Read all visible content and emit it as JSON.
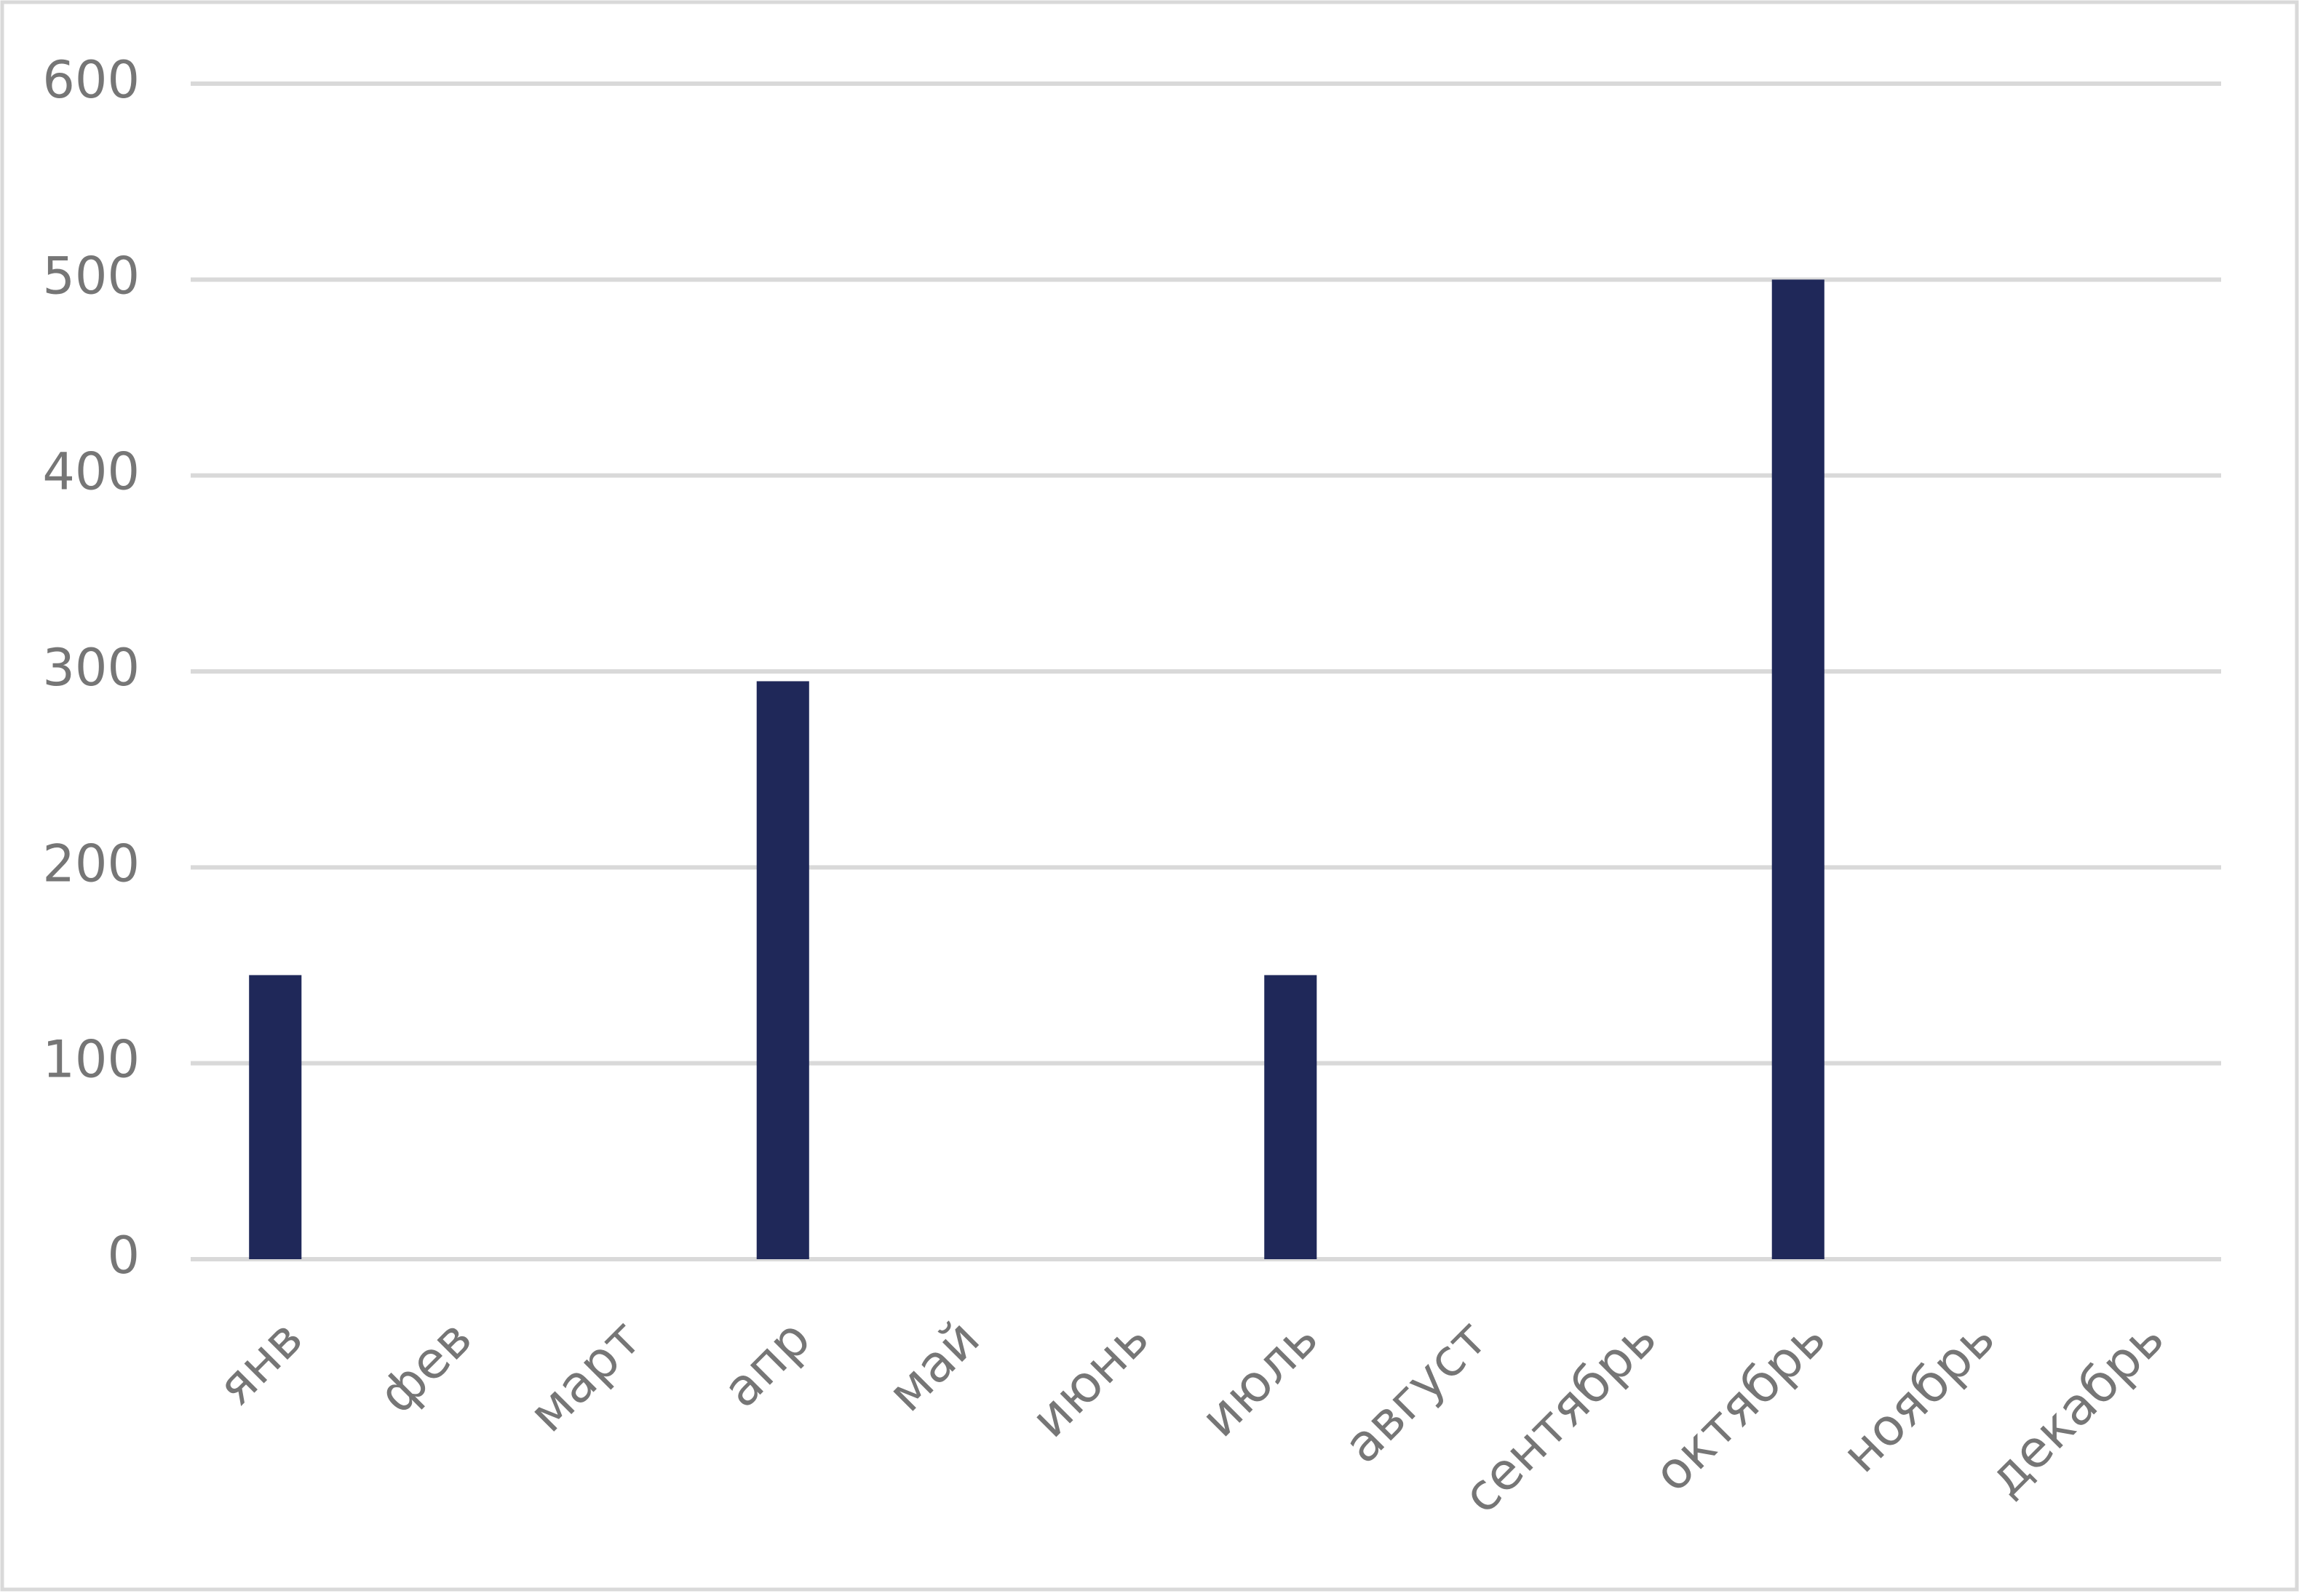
{
  "chart_data": {
    "type": "bar",
    "categories": [
      "янв",
      "фев",
      "март",
      "апр",
      "май",
      "июнь",
      "июль",
      "август",
      "сентябрь",
      "октябрь",
      "ноябрь",
      "декабрь"
    ],
    "values": [
      145,
      0,
      0,
      295,
      0,
      0,
      145,
      0,
      0,
      500,
      0,
      0
    ],
    "color": "#1f2859",
    "ylim": [
      0,
      600
    ],
    "yticks": [
      0,
      100,
      200,
      300,
      400,
      500,
      600
    ],
    "grid": true
  }
}
